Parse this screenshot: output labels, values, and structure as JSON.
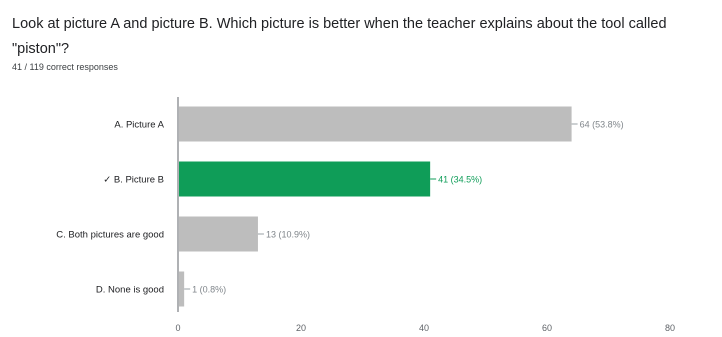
{
  "question": {
    "text": "Look at picture A and picture B. Which picture is better when the teacher explains about the tool called \"piston\"?"
  },
  "summary": {
    "text": "41 / 119 correct responses"
  },
  "colors": {
    "bar_default": "#bdbdbd",
    "bar_correct": "#0f9d58",
    "axis": "#5f6368",
    "gridline": "#e8eaed"
  },
  "chart_data": {
    "type": "bar",
    "orientation": "horizontal",
    "categories": [
      "A. Picture A",
      "✓ B. Picture B",
      "C. Both pictures are good",
      "D. None is good"
    ],
    "values": [
      64,
      41,
      13,
      1
    ],
    "value_labels": [
      "64 (53.8%)",
      "41 (34.5%)",
      "13 (10.9%)",
      "1 (0.8%)"
    ],
    "correct_index": 1,
    "xlim": [
      0,
      80
    ],
    "xticks": [
      0,
      20,
      40,
      60,
      80
    ],
    "title": "",
    "xlabel": "",
    "ylabel": "",
    "grid": false,
    "legend": "none"
  }
}
